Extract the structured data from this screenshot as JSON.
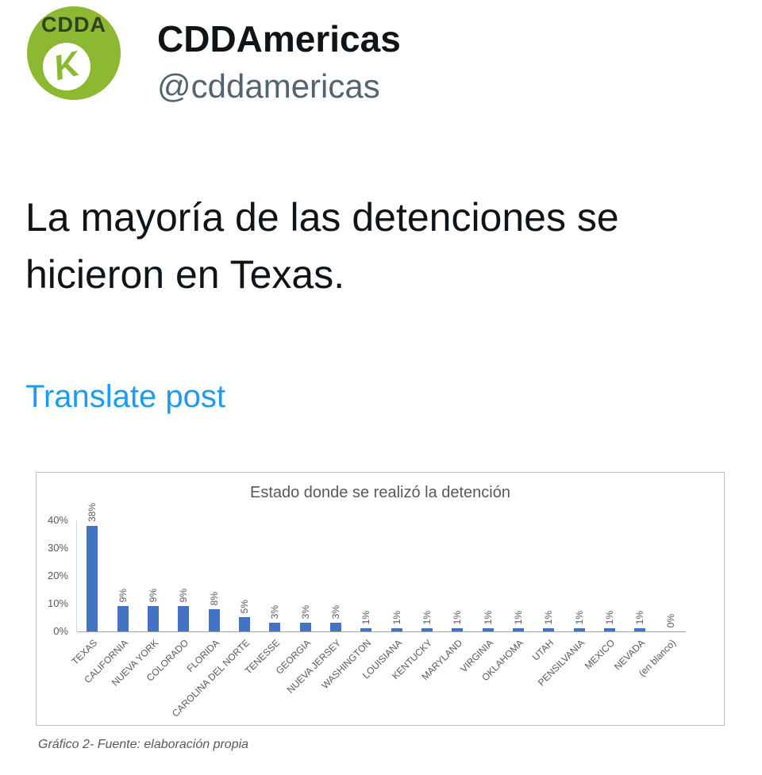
{
  "post": {
    "author_name": "CDDAmericas",
    "author_handle": "@cddamericas",
    "avatar_text": "CDDA",
    "avatar_logo_letter": "K",
    "body": "La mayoría de las detenciones se hicieron en Texas.",
    "translate_label": "Translate post"
  },
  "chart_data": {
    "type": "bar",
    "title": "Estado donde se realizó la detención",
    "categories": [
      "TEXAS",
      "CALIFORNIA",
      "NUEVA YORK",
      "COLORADO",
      "FLORIDA",
      "CAROLINA DEL NORTE",
      "TENESSE",
      "GEORGIA",
      "NUEVA JERSEY",
      "WASHINGTON",
      "LOUISIANA",
      "KENTUCKY",
      "MARYLAND",
      "VIRGINIA",
      "OKLAHOMA",
      "UTAH",
      "PENSILVANIA",
      "MEXICO",
      "NEVADA",
      "(en blanco)"
    ],
    "values": [
      38,
      9,
      9,
      9,
      8,
      5,
      3,
      3,
      3,
      1,
      1,
      1,
      1,
      1,
      1,
      1,
      1,
      1,
      1,
      0
    ],
    "value_labels": [
      "38%",
      "9%",
      "9%",
      "9%",
      "8%",
      "5%",
      "3%",
      "3%",
      "3%",
      "1%",
      "1%",
      "1%",
      "1%",
      "1%",
      "1%",
      "1%",
      "1%",
      "1%",
      "1%",
      "0%"
    ],
    "y_ticks": [
      "40%",
      "30%",
      "20%",
      "10%",
      "0%"
    ],
    "ylim": [
      0,
      40
    ],
    "xlabel": "",
    "ylabel": "",
    "grid": "off",
    "legend": "none",
    "caption": "Gráfico 2- Fuente: elaboración propia"
  },
  "colors": {
    "link_blue": "#1D9BF0",
    "bar_color": "#4472C4",
    "avatar_green": "#8CB832",
    "chart_text": "#595959",
    "handle_gray": "#536471",
    "text_black": "#0F1419"
  }
}
